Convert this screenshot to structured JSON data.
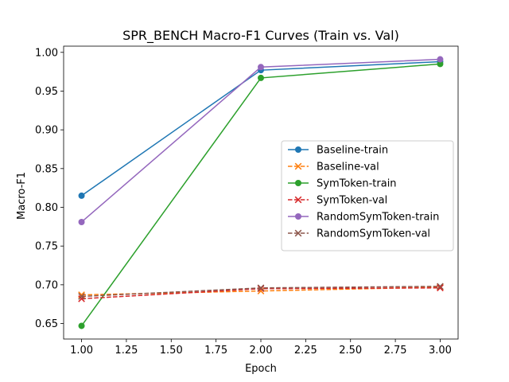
{
  "chart_data": {
    "type": "line",
    "title": "SPR_BENCH Macro-F1 Curves (Train vs. Val)",
    "xlabel": "Epoch",
    "ylabel": "Macro-F1",
    "xlim": [
      0.9,
      3.1
    ],
    "ylim": [
      0.63,
      1.008
    ],
    "xticks": [
      "1.00",
      "1.25",
      "1.50",
      "1.75",
      "2.00",
      "2.25",
      "2.50",
      "2.75",
      "3.00"
    ],
    "yticks": [
      "0.65",
      "0.70",
      "0.75",
      "0.80",
      "0.85",
      "0.90",
      "0.95",
      "1.00"
    ],
    "x": [
      1,
      2,
      3
    ],
    "grid": false,
    "legend_position": "center-right",
    "series": [
      {
        "name": "Baseline-train",
        "values": [
          0.815,
          0.977,
          0.988
        ],
        "color": "#1f77b4",
        "dash": "solid",
        "marker": "circle"
      },
      {
        "name": "Baseline-val",
        "values": [
          0.687,
          0.692,
          0.697
        ],
        "color": "#ff7f0e",
        "dash": "dashed",
        "marker": "x"
      },
      {
        "name": "SymToken-train",
        "values": [
          0.647,
          0.967,
          0.985
        ],
        "color": "#2ca02c",
        "dash": "solid",
        "marker": "circle"
      },
      {
        "name": "SymToken-val",
        "values": [
          0.682,
          0.695,
          0.696
        ],
        "color": "#d62728",
        "dash": "dashed",
        "marker": "x"
      },
      {
        "name": "RandomSymToken-train",
        "values": [
          0.781,
          0.981,
          0.991
        ],
        "color": "#9467bd",
        "dash": "solid",
        "marker": "circle"
      },
      {
        "name": "RandomSymToken-val",
        "values": [
          0.685,
          0.696,
          0.698
        ],
        "color": "#8c564b",
        "dash": "dashed",
        "marker": "x"
      }
    ]
  }
}
